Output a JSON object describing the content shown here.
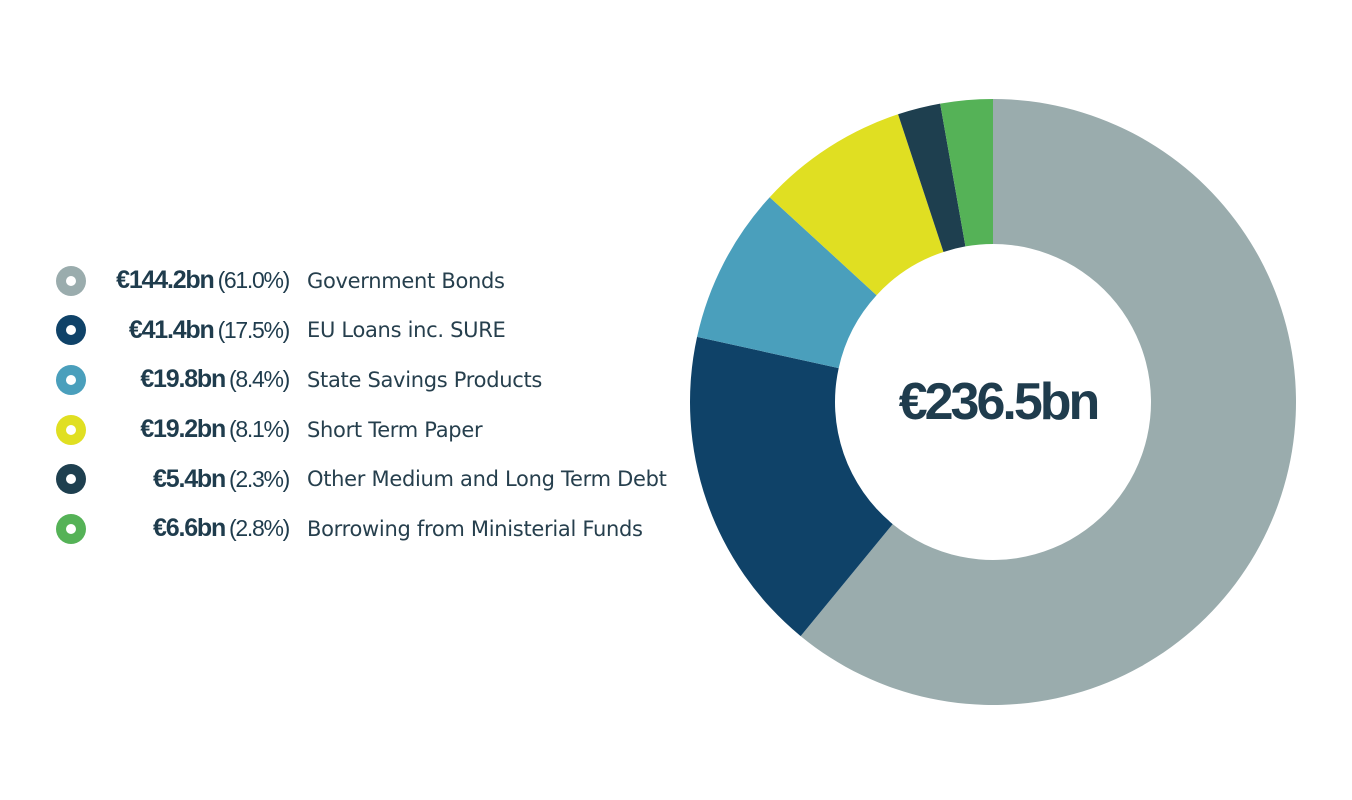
{
  "chart_data": {
    "type": "pie",
    "style": "donut",
    "center_label": "€236.5bn",
    "legend_position": "left",
    "slices": [
      {
        "label": "Government Bonds",
        "value": 144.2,
        "value_label": "€144.2bn",
        "percent": 61.0,
        "percent_label": "(61.0%)",
        "color": "#9aacad"
      },
      {
        "label": "EU Loans inc. SURE",
        "value": 41.4,
        "value_label": "€41.4bn",
        "percent": 17.5,
        "percent_label": "(17.5%)",
        "color": "#0f4268"
      },
      {
        "label": "State Savings Products",
        "value": 19.8,
        "value_label": "€19.8bn",
        "percent": 8.4,
        "percent_label": "(8.4%)",
        "color": "#4a9fbc"
      },
      {
        "label": "Short Term Paper",
        "value": 19.2,
        "value_label": "€19.2bn",
        "percent": 8.1,
        "percent_label": "(8.1%)",
        "color": "#e0df22"
      },
      {
        "label": "Other Medium and Long Term Debt",
        "value": 5.4,
        "value_label": "€5.4bn",
        "percent": 2.3,
        "percent_label": "(2.3%)",
        "color": "#1e3f4f"
      },
      {
        "label": "Borrowing from Ministerial Funds",
        "value": 6.6,
        "value_label": "€6.6bn",
        "percent": 2.8,
        "percent_label": "(2.8%)",
        "color": "#55b257"
      }
    ]
  }
}
